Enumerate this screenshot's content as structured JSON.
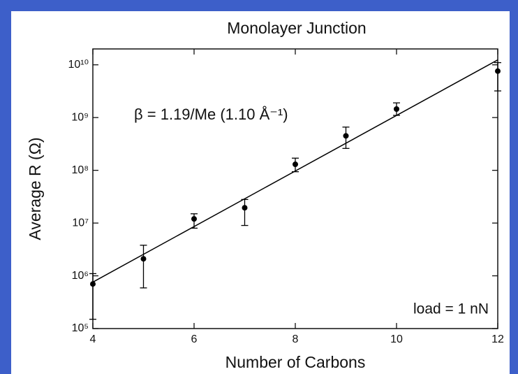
{
  "chart_data": {
    "type": "scatter",
    "title": "Monolayer Junction",
    "xlabel": "Number of Carbons",
    "ylabel": "Average R (Ω)",
    "x": [
      4,
      5,
      6,
      7,
      8,
      9,
      10,
      12
    ],
    "series": [
      {
        "color": "#000000",
        "values": [
          700000,
          2100000,
          12000000,
          19500000,
          130000000,
          450000000,
          1450000000,
          7600000000
        ],
        "lower": [
          150000,
          590000,
          8000000,
          9000000,
          94000000,
          260000000,
          1100000000,
          3200000000
        ],
        "upper": [
          1100000,
          3800000,
          15000000,
          28000000,
          170000000,
          660000000,
          1900000000,
          11000000000
        ]
      }
    ],
    "fit": {
      "color": "#000000",
      "x": [
        4,
        12
      ],
      "values": [
        760000,
        12400000000
      ]
    },
    "xlim": [
      4,
      12
    ],
    "ylim": [
      100000,
      20000000000
    ],
    "xticks": [
      4,
      6,
      8,
      10,
      12
    ],
    "yticks": [
      {
        "value": 100000,
        "label": "10⁵"
      },
      {
        "value": 1000000,
        "label": "10⁶"
      },
      {
        "value": 10000000,
        "label": "10⁷"
      },
      {
        "value": 100000000,
        "label": "10⁸"
      },
      {
        "value": 1000000000,
        "label": "10⁹"
      },
      {
        "value": 10000000000,
        "label": "10¹⁰"
      }
    ],
    "log_y": true,
    "annotations": [
      "β = 1.19/Me (1.10 Å⁻¹)",
      "load = 1 nN"
    ]
  }
}
